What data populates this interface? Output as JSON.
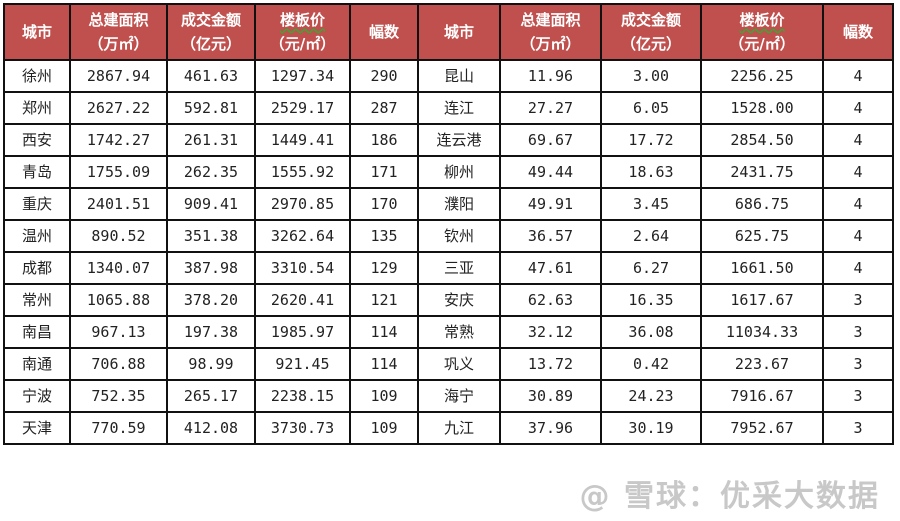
{
  "headers": [
    {
      "l1": "城市",
      "l2": ""
    },
    {
      "l1": "总建面积",
      "l2": "（万㎡）"
    },
    {
      "l1": "成交金额",
      "l2": "（亿元）"
    },
    {
      "l1": "楼板价",
      "l2": "（元/㎡）"
    },
    {
      "l1": "幅数",
      "l2": ""
    }
  ],
  "rows": [
    [
      [
        "徐州",
        "2867.94",
        "461.63",
        "1297.34",
        "290"
      ],
      [
        "昆山",
        "11.96",
        "3.00",
        "2256.25",
        "4"
      ]
    ],
    [
      [
        "郑州",
        "2627.22",
        "592.81",
        "2529.17",
        "287"
      ],
      [
        "连江",
        "27.27",
        "6.05",
        "1528.00",
        "4"
      ]
    ],
    [
      [
        "西安",
        "1742.27",
        "261.31",
        "1449.41",
        "186"
      ],
      [
        "连云港",
        "69.67",
        "17.72",
        "2854.50",
        "4"
      ]
    ],
    [
      [
        "青岛",
        "1755.09",
        "262.35",
        "1555.92",
        "171"
      ],
      [
        "柳州",
        "49.44",
        "18.63",
        "2431.75",
        "4"
      ]
    ],
    [
      [
        "重庆",
        "2401.51",
        "909.41",
        "2970.85",
        "170"
      ],
      [
        "濮阳",
        "49.91",
        "3.45",
        "686.75",
        "4"
      ]
    ],
    [
      [
        "温州",
        "890.52",
        "351.38",
        "3262.64",
        "135"
      ],
      [
        "钦州",
        "36.57",
        "2.64",
        "625.75",
        "4"
      ]
    ],
    [
      [
        "成都",
        "1340.07",
        "387.98",
        "3310.54",
        "129"
      ],
      [
        "三亚",
        "47.61",
        "6.27",
        "1661.50",
        "4"
      ]
    ],
    [
      [
        "常州",
        "1065.88",
        "378.20",
        "2620.41",
        "121"
      ],
      [
        "安庆",
        "62.63",
        "16.35",
        "1617.67",
        "3"
      ]
    ],
    [
      [
        "南昌",
        "967.13",
        "197.38",
        "1985.97",
        "114"
      ],
      [
        "常熟",
        "32.12",
        "36.08",
        "11034.33",
        "3"
      ]
    ],
    [
      [
        "南通",
        "706.88",
        "98.99",
        "921.45",
        "114"
      ],
      [
        "巩义",
        "13.72",
        "0.42",
        "223.67",
        "3"
      ]
    ],
    [
      [
        "宁波",
        "752.35",
        "265.17",
        "2238.15",
        "109"
      ],
      [
        "海宁",
        "30.89",
        "24.23",
        "7916.67",
        "3"
      ]
    ],
    [
      [
        "天津",
        "770.59",
        "412.08",
        "3730.73",
        "109"
      ],
      [
        "九江",
        "37.96",
        "30.19",
        "7952.67",
        "3"
      ]
    ]
  ],
  "watermark": "@ 雪球：优采大数据",
  "colors": {
    "header_bg": "#c0504d",
    "header_text": "#ffffff"
  }
}
